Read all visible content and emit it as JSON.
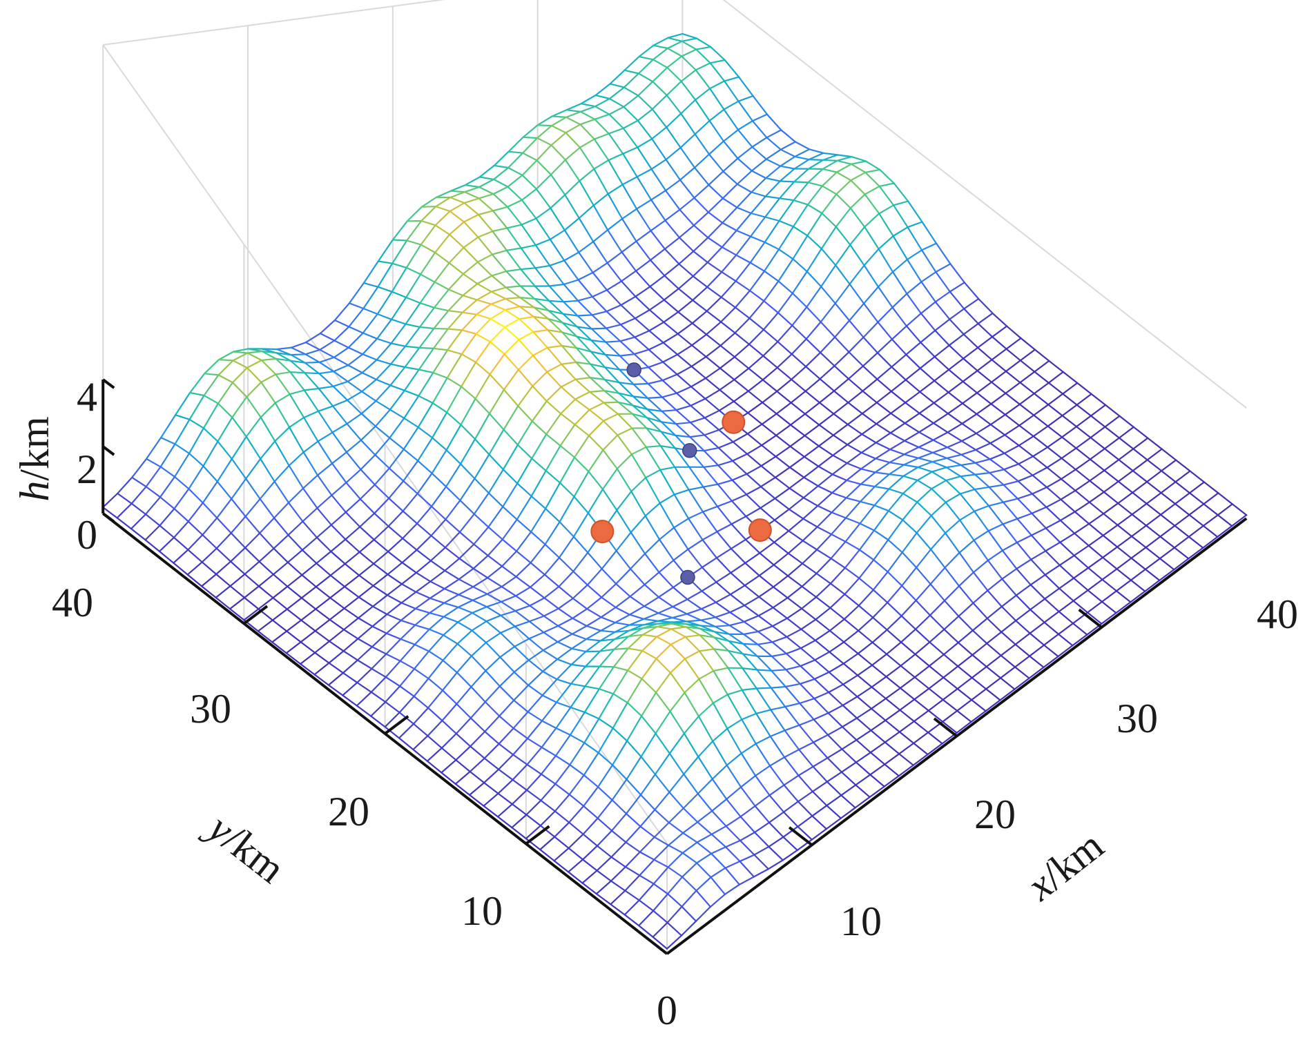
{
  "chart_data": {
    "type": "surface",
    "xlabel": {
      "var": "x",
      "unit": "/km"
    },
    "ylabel": {
      "var": "y",
      "unit": "/km"
    },
    "zlabel": {
      "var": "h",
      "unit": "/km"
    },
    "xlim": [
      0,
      40
    ],
    "ylim": [
      0,
      40
    ],
    "zlim": [
      0,
      4
    ],
    "x_ticks": [
      "0",
      "10",
      "20",
      "30",
      "40"
    ],
    "y_ticks": [
      "10",
      "20",
      "30",
      "40"
    ],
    "z_ticks": [
      "0",
      "2",
      "4"
    ],
    "grid": true,
    "colormap": "parula",
    "mesh_resolution_km": 1,
    "hills": [
      {
        "x": 38,
        "y": 38,
        "height": 1.8,
        "sigma": 3.2
      },
      {
        "x": 30,
        "y": 38,
        "height": 2.0,
        "sigma": 3.0
      },
      {
        "x": 22,
        "y": 38,
        "height": 2.2,
        "sigma": 3.2
      },
      {
        "x": 38,
        "y": 26,
        "height": 2.1,
        "sigma": 3.4
      },
      {
        "x": 8,
        "y": 38,
        "height": 2.3,
        "sigma": 3.2
      },
      {
        "x": 18,
        "y": 30,
        "height": 2.8,
        "sigma": 3.8
      },
      {
        "x": 18,
        "y": 22,
        "height": 2.0,
        "sigma": 3.0
      },
      {
        "x": 10,
        "y": 10,
        "height": 2.6,
        "sigma": 3.6
      },
      {
        "x": 28,
        "y": 10,
        "height": 1.4,
        "sigma": 3.0
      },
      {
        "x": 6,
        "y": 20,
        "height": 1.0,
        "sigma": 2.8
      },
      {
        "x": 4,
        "y": 2,
        "height": 0.6,
        "sigma": 2.0
      }
    ],
    "points_red": [
      {
        "x": 26,
        "y": 22,
        "z": 0.4
      },
      {
        "x": 22,
        "y": 16,
        "z": 0.4
      },
      {
        "x": 15,
        "y": 20,
        "z": 0.4
      }
    ],
    "points_blue": [
      {
        "x": 24,
        "y": 27,
        "z": 0.4
      },
      {
        "x": 22,
        "y": 21,
        "z": 0.4
      },
      {
        "x": 17,
        "y": 16,
        "z": 0.4
      }
    ],
    "colors": {
      "red_point": "#ec6a3f",
      "blue_point": "#5a5fa8",
      "axis": "#111111",
      "box": "#d9d9d9"
    }
  }
}
